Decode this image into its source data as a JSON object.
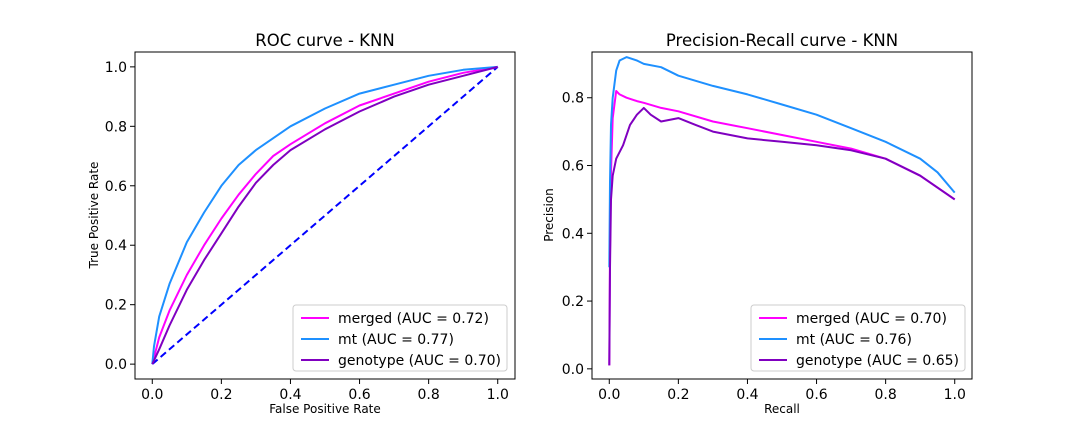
{
  "chart_data": [
    {
      "type": "line",
      "title": "ROC curve - KNN",
      "xlabel": "False Positive Rate",
      "ylabel": "True Positive Rate",
      "xlim": [
        -0.05,
        1.05
      ],
      "ylim": [
        -0.05,
        1.05
      ],
      "xticks": [
        "0.0",
        "0.2",
        "0.4",
        "0.6",
        "0.8",
        "1.0"
      ],
      "yticks": [
        "0.0",
        "0.2",
        "0.4",
        "0.6",
        "0.8",
        "1.0"
      ],
      "legend_position": "lower-right",
      "diagonal": {
        "x": [
          0,
          1
        ],
        "y": [
          0,
          1
        ],
        "color": "#0000ff",
        "style": "dashed"
      },
      "series": [
        {
          "name": "merged (AUC = 0.72)",
          "color": "#ff00ff",
          "x": [
            0,
            0.02,
            0.05,
            0.1,
            0.15,
            0.2,
            0.25,
            0.3,
            0.35,
            0.4,
            0.5,
            0.6,
            0.7,
            0.8,
            0.9,
            1.0
          ],
          "y": [
            0,
            0.09,
            0.18,
            0.3,
            0.4,
            0.49,
            0.57,
            0.64,
            0.7,
            0.74,
            0.81,
            0.87,
            0.91,
            0.95,
            0.98,
            1.0
          ]
        },
        {
          "name": "mt (AUC = 0.77)",
          "color": "#1e90ff",
          "x": [
            0,
            0.005,
            0.02,
            0.05,
            0.1,
            0.15,
            0.2,
            0.25,
            0.3,
            0.35,
            0.4,
            0.5,
            0.6,
            0.7,
            0.8,
            0.9,
            1.0
          ],
          "y": [
            0,
            0.06,
            0.16,
            0.27,
            0.41,
            0.51,
            0.6,
            0.67,
            0.72,
            0.76,
            0.8,
            0.86,
            0.91,
            0.94,
            0.97,
            0.99,
            1.0
          ]
        },
        {
          "name": "genotype (AUC = 0.70)",
          "color": "#8000c0",
          "x": [
            0,
            0.02,
            0.05,
            0.1,
            0.15,
            0.2,
            0.25,
            0.3,
            0.35,
            0.4,
            0.5,
            0.6,
            0.7,
            0.8,
            0.9,
            1.0
          ],
          "y": [
            0,
            0.05,
            0.13,
            0.25,
            0.35,
            0.44,
            0.53,
            0.61,
            0.67,
            0.72,
            0.79,
            0.85,
            0.9,
            0.94,
            0.97,
            1.0
          ]
        }
      ]
    },
    {
      "type": "line",
      "title": "Precision-Recall curve - KNN",
      "xlabel": "Recall",
      "ylabel": "Precision",
      "xlim": [
        -0.05,
        1.05
      ],
      "ylim": [
        -0.03,
        0.935
      ],
      "xticks": [
        "0.0",
        "0.2",
        "0.4",
        "0.6",
        "0.8",
        "1.0"
      ],
      "yticks": [
        "0.0",
        "0.2",
        "0.4",
        "0.6",
        "0.8"
      ],
      "legend_position": "lower-right",
      "series": [
        {
          "name": "merged (AUC = 0.70)",
          "color": "#ff00ff",
          "x": [
            0,
            0.002,
            0.005,
            0.01,
            0.02,
            0.03,
            0.05,
            0.08,
            0.1,
            0.15,
            0.2,
            0.3,
            0.4,
            0.5,
            0.6,
            0.7,
            0.8,
            0.9,
            1.0
          ],
          "y": [
            0.01,
            0.35,
            0.58,
            0.74,
            0.82,
            0.81,
            0.8,
            0.79,
            0.785,
            0.77,
            0.76,
            0.73,
            0.71,
            0.69,
            0.67,
            0.65,
            0.62,
            0.57,
            0.5
          ]
        },
        {
          "name": "mt (AUC = 0.76)",
          "color": "#1e90ff",
          "x": [
            0,
            0.002,
            0.005,
            0.01,
            0.02,
            0.03,
            0.05,
            0.08,
            0.1,
            0.15,
            0.2,
            0.3,
            0.4,
            0.5,
            0.6,
            0.7,
            0.8,
            0.9,
            0.95,
            1.0
          ],
          "y": [
            0.3,
            0.55,
            0.72,
            0.8,
            0.88,
            0.91,
            0.92,
            0.91,
            0.9,
            0.89,
            0.865,
            0.835,
            0.81,
            0.78,
            0.75,
            0.71,
            0.67,
            0.62,
            0.58,
            0.52
          ]
        },
        {
          "name": "genotype (AUC = 0.65)",
          "color": "#8000c0",
          "x": [
            0,
            0.002,
            0.005,
            0.01,
            0.02,
            0.04,
            0.06,
            0.08,
            0.1,
            0.12,
            0.15,
            0.2,
            0.25,
            0.3,
            0.35,
            0.4,
            0.5,
            0.6,
            0.7,
            0.8,
            0.9,
            1.0
          ],
          "y": [
            0.01,
            0.3,
            0.5,
            0.57,
            0.62,
            0.66,
            0.72,
            0.75,
            0.77,
            0.75,
            0.73,
            0.74,
            0.72,
            0.7,
            0.69,
            0.68,
            0.67,
            0.66,
            0.645,
            0.62,
            0.57,
            0.5
          ]
        }
      ]
    }
  ]
}
